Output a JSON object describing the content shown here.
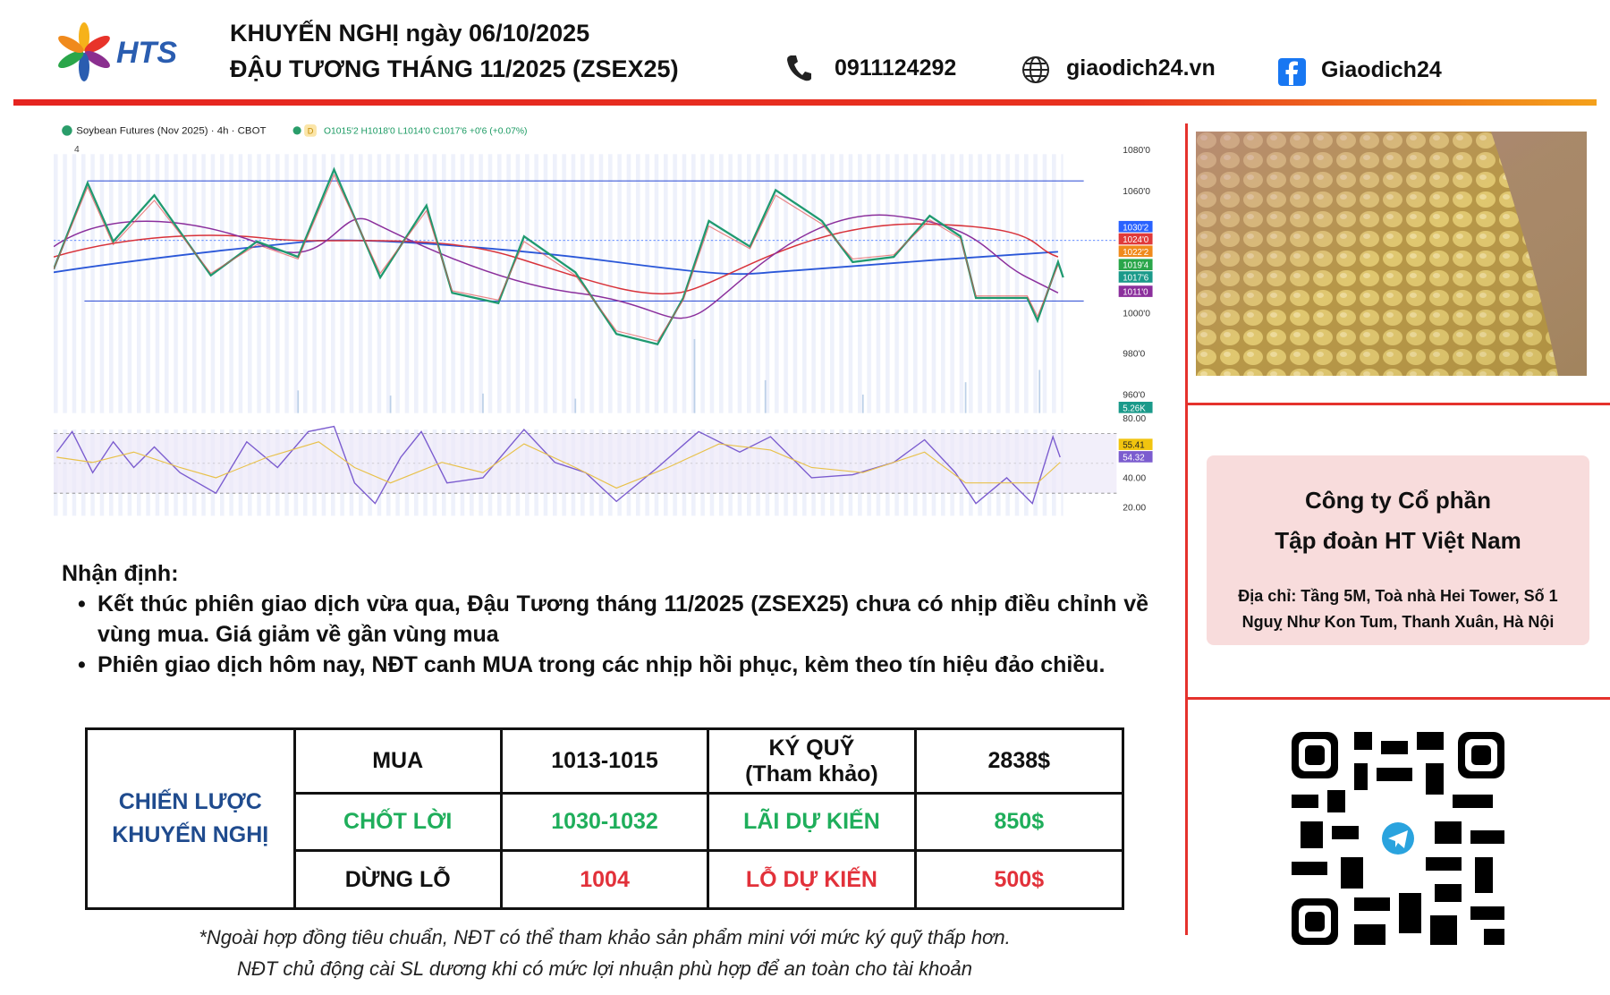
{
  "header": {
    "logo_text": "HTS",
    "title_line1": "KHUYẾN NGHỊ ngày 06/10/2025",
    "title_line2": "ĐẬU TƯƠNG THÁNG 11/2025 (ZSEX25)",
    "phone": "0911124292",
    "website": "giaodich24.vn",
    "facebook": "Giaodich24"
  },
  "chart_image": {
    "title": "Soybean Futures (Nov 2025) · 4h · CBOT",
    "interval_badge": "D",
    "ohlc": "O1015'2 H1018'0 L1014'0 C1017'6 +0'6 (+0.07%)",
    "indicator_count": "4",
    "price_labels": [
      "1080'0",
      "1060'0",
      "1000'0",
      "980'0",
      "960'0"
    ],
    "price_tags": [
      "1030'2",
      "1024'0",
      "1022'2",
      "1019'4",
      "1017'6",
      "1011'0",
      "5.26K"
    ],
    "oscillator_labels": [
      "80.00",
      "40.00",
      "20.00"
    ],
    "oscillator_tags": [
      "55.41",
      "54.32"
    ]
  },
  "analysis": {
    "heading": "Nhận định:",
    "bullets": [
      "Kết thúc phiên giao dịch vừa qua, Đậu Tương tháng 11/2025 (ZSEX25) chưa có nhịp điều chỉnh về vùng mua. Giá giảm về gần vùng mua",
      "Phiên giao dịch hôm nay, NĐT canh MUA trong các nhịp hồi phục, kèm theo tín hiệu đảo chiều."
    ]
  },
  "table": {
    "label": [
      "CHIẾN LƯỢC",
      "KHUYẾN NGHỊ"
    ],
    "rows": [
      [
        "MUA",
        "1013-1015",
        [
          "KÝ QUỸ",
          "(Tham khảo)"
        ],
        "2838$"
      ],
      [
        "CHỐT LỜI",
        "1030-1032",
        "LÃI DỰ KIẾN",
        "850$"
      ],
      [
        "DỪNG LỖ",
        "1004",
        "LỖ DỰ KIẾN",
        "500$"
      ]
    ]
  },
  "company": {
    "name": [
      "Công ty Cổ phần",
      "Tập đoàn HT Việt Nam"
    ],
    "address": [
      "Địa chỉ: Tầng 5M, Toà nhà Hei Tower, Số 1",
      "Nguỵ Như Kon Tum, Thanh Xuân, Hà Nội"
    ]
  },
  "notes": [
    "*Ngoài hợp đồng tiêu chuẩn, NĐT có thể tham khảo sản phẩm mini với mức ký quỹ thấp hơn.",
    "NĐT chủ động cài SL dương khi có mức lợi nhuận phù hợp để an toàn cho tài khoản"
  ]
}
